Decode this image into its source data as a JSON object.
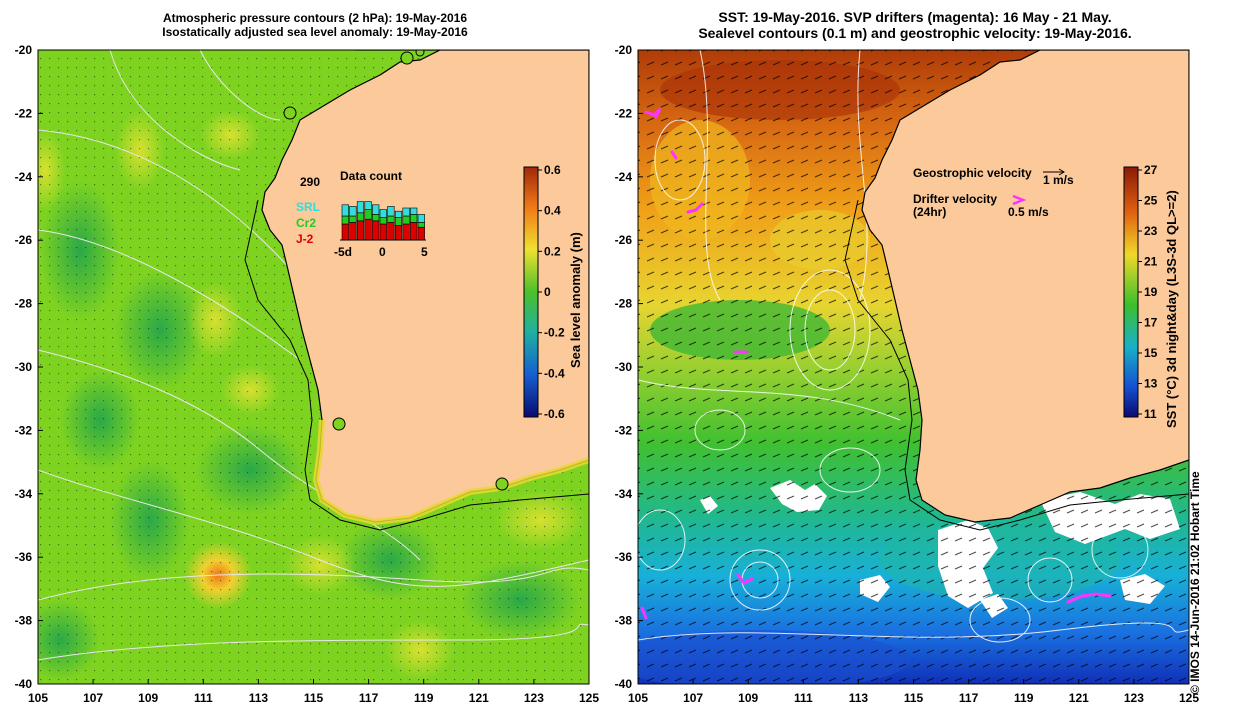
{
  "left_panel": {
    "title_line1": "Atmospheric pressure contours (2 hPa): 19-May-2016",
    "title_line2": "Isostatically adjusted sea level anomaly: 19-May-2016",
    "colorbar_label": "Sea level anomaly (m)",
    "colorbar_ticks": [
      "0.6",
      "0.4",
      "0.2",
      "0",
      "-0.2",
      "-0.4",
      "-0.6"
    ],
    "inset": {
      "title": "Data count",
      "total": "290",
      "legend": [
        {
          "name": "SRL",
          "color": "#33dddd"
        },
        {
          "name": "Cr2",
          "color": "#22cc22"
        },
        {
          "name": "J-2",
          "color": "#dd0000"
        }
      ],
      "axis_labels": [
        "-5d",
        "0",
        "5"
      ]
    }
  },
  "right_panel": {
    "title_line1": "SST: 19-May-2016. SVP drifters (magenta): 16 May - 21 May.",
    "title_line2": "Sealevel contours (0.1 m) and geostrophic velocity: 19-May-2016.",
    "colorbar_label": "SST (°C) 3d night&day (L3S-3d QL>=2)",
    "colorbar_ticks": [
      "27",
      "25",
      "23",
      "21",
      "19",
      "17",
      "15",
      "13",
      "11"
    ],
    "geostrophic_label": "Geostrophic velocity",
    "geostrophic_scale": "1 m/s",
    "drifter_label": "Drifter velocity",
    "drifter_sub": "(24hr)",
    "drifter_scale": "0.5 m/s"
  },
  "axes": {
    "y_ticks": [
      "-20",
      "-22",
      "-24",
      "-26",
      "-28",
      "-30",
      "-32",
      "-34",
      "-36",
      "-38",
      "-40"
    ],
    "x_ticks": [
      "105",
      "107",
      "109",
      "111",
      "113",
      "115",
      "117",
      "119",
      "121",
      "123",
      "125"
    ]
  },
  "credit": "© IMOS 14-Jun-2016 21:02 Hobart Time",
  "colors": {
    "land": "#fbc99a",
    "sla_base": "#7ed321",
    "sst_warm": "#c84a0a",
    "sst_cold": "#1f5fd8",
    "drifter": "#ff33ff"
  }
}
